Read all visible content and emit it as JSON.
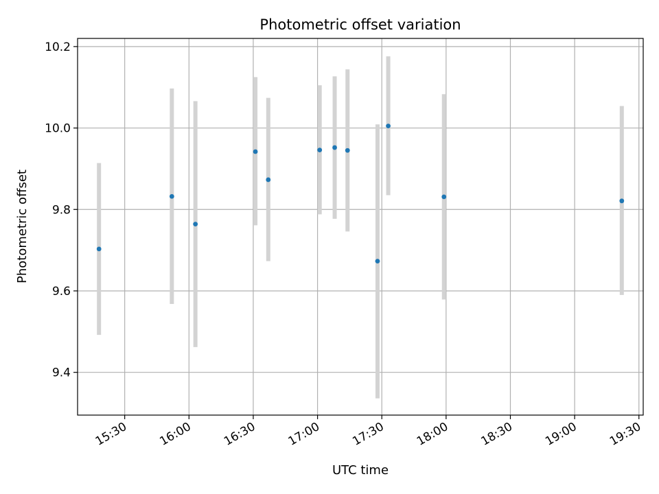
{
  "chart_data": {
    "type": "scatter",
    "title": "Photometric offset variation",
    "xlabel": "UTC time",
    "ylabel": "Photometric offset",
    "xlim": [
      "15:08",
      "19:32"
    ],
    "ylim": [
      9.295,
      10.22
    ],
    "xticks": [
      "15:30",
      "16:00",
      "16:30",
      "17:00",
      "17:30",
      "18:00",
      "18:30",
      "19:00",
      "19:30"
    ],
    "yticks": [
      9.4,
      9.6,
      9.8,
      10.0,
      10.2
    ],
    "ytick_labels": [
      "9.4",
      "9.6",
      "9.8",
      "10.0",
      "10.2"
    ],
    "grid": true,
    "colors": {
      "point": "#1f77b4",
      "errorbar": "#d3d3d3",
      "grid": "#b0b0b0"
    },
    "points": [
      {
        "x": "15:18",
        "y": 9.703,
        "ylow": 9.492,
        "yhigh": 9.914
      },
      {
        "x": "15:52",
        "y": 9.832,
        "ylow": 9.568,
        "yhigh": 10.097
      },
      {
        "x": "16:03",
        "y": 9.764,
        "ylow": 9.462,
        "yhigh": 10.066
      },
      {
        "x": "16:31",
        "y": 9.942,
        "ylow": 9.761,
        "yhigh": 10.125
      },
      {
        "x": "16:37",
        "y": 9.873,
        "ylow": 9.673,
        "yhigh": 10.074
      },
      {
        "x": "17:01",
        "y": 9.946,
        "ylow": 9.788,
        "yhigh": 10.105
      },
      {
        "x": "17:08",
        "y": 9.952,
        "ylow": 9.777,
        "yhigh": 10.127
      },
      {
        "x": "17:14",
        "y": 9.945,
        "ylow": 9.746,
        "yhigh": 10.144
      },
      {
        "x": "17:28",
        "y": 9.673,
        "ylow": 9.336,
        "yhigh": 10.009
      },
      {
        "x": "17:33",
        "y": 10.005,
        "ylow": 9.835,
        "yhigh": 10.176
      },
      {
        "x": "17:59",
        "y": 9.831,
        "ylow": 9.579,
        "yhigh": 10.083
      },
      {
        "x": "19:22",
        "y": 9.821,
        "ylow": 9.59,
        "yhigh": 10.054
      }
    ]
  }
}
